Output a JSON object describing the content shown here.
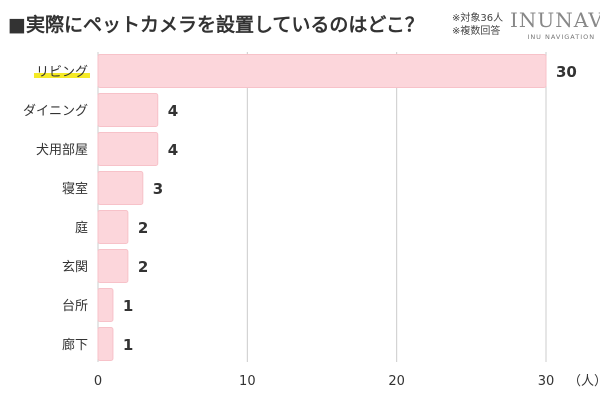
{
  "title": "■実際にペットカメラを設置しているのはどこ？",
  "note": [
    "※対象36人",
    "※複数回答"
  ],
  "logo": {
    "main": "INUNAVI",
    "sub": "INU NAVIGATION"
  },
  "colors": {
    "bar": "#fcd6db",
    "bar_stroke": "#f7c2c9",
    "grid": "#cccccc",
    "highlight": "#f3e600"
  },
  "chart_data": {
    "type": "bar",
    "orientation": "horizontal",
    "categories": [
      "リビング",
      "ダイニング",
      "犬用部屋",
      "寝室",
      "庭",
      "玄関",
      "台所",
      "廊下"
    ],
    "values": [
      30,
      4,
      4,
      3,
      2,
      2,
      1,
      1
    ],
    "value_labels": [
      "30",
      "4",
      "4",
      "3",
      "2",
      "2",
      "1",
      "1"
    ],
    "xlim": [
      0,
      30
    ],
    "ticks": [
      0,
      10,
      20,
      30
    ],
    "tick_labels": [
      "0",
      "10",
      "20",
      "30"
    ],
    "unit": "（人）",
    "grid": true,
    "highlight_category": "リビング"
  }
}
